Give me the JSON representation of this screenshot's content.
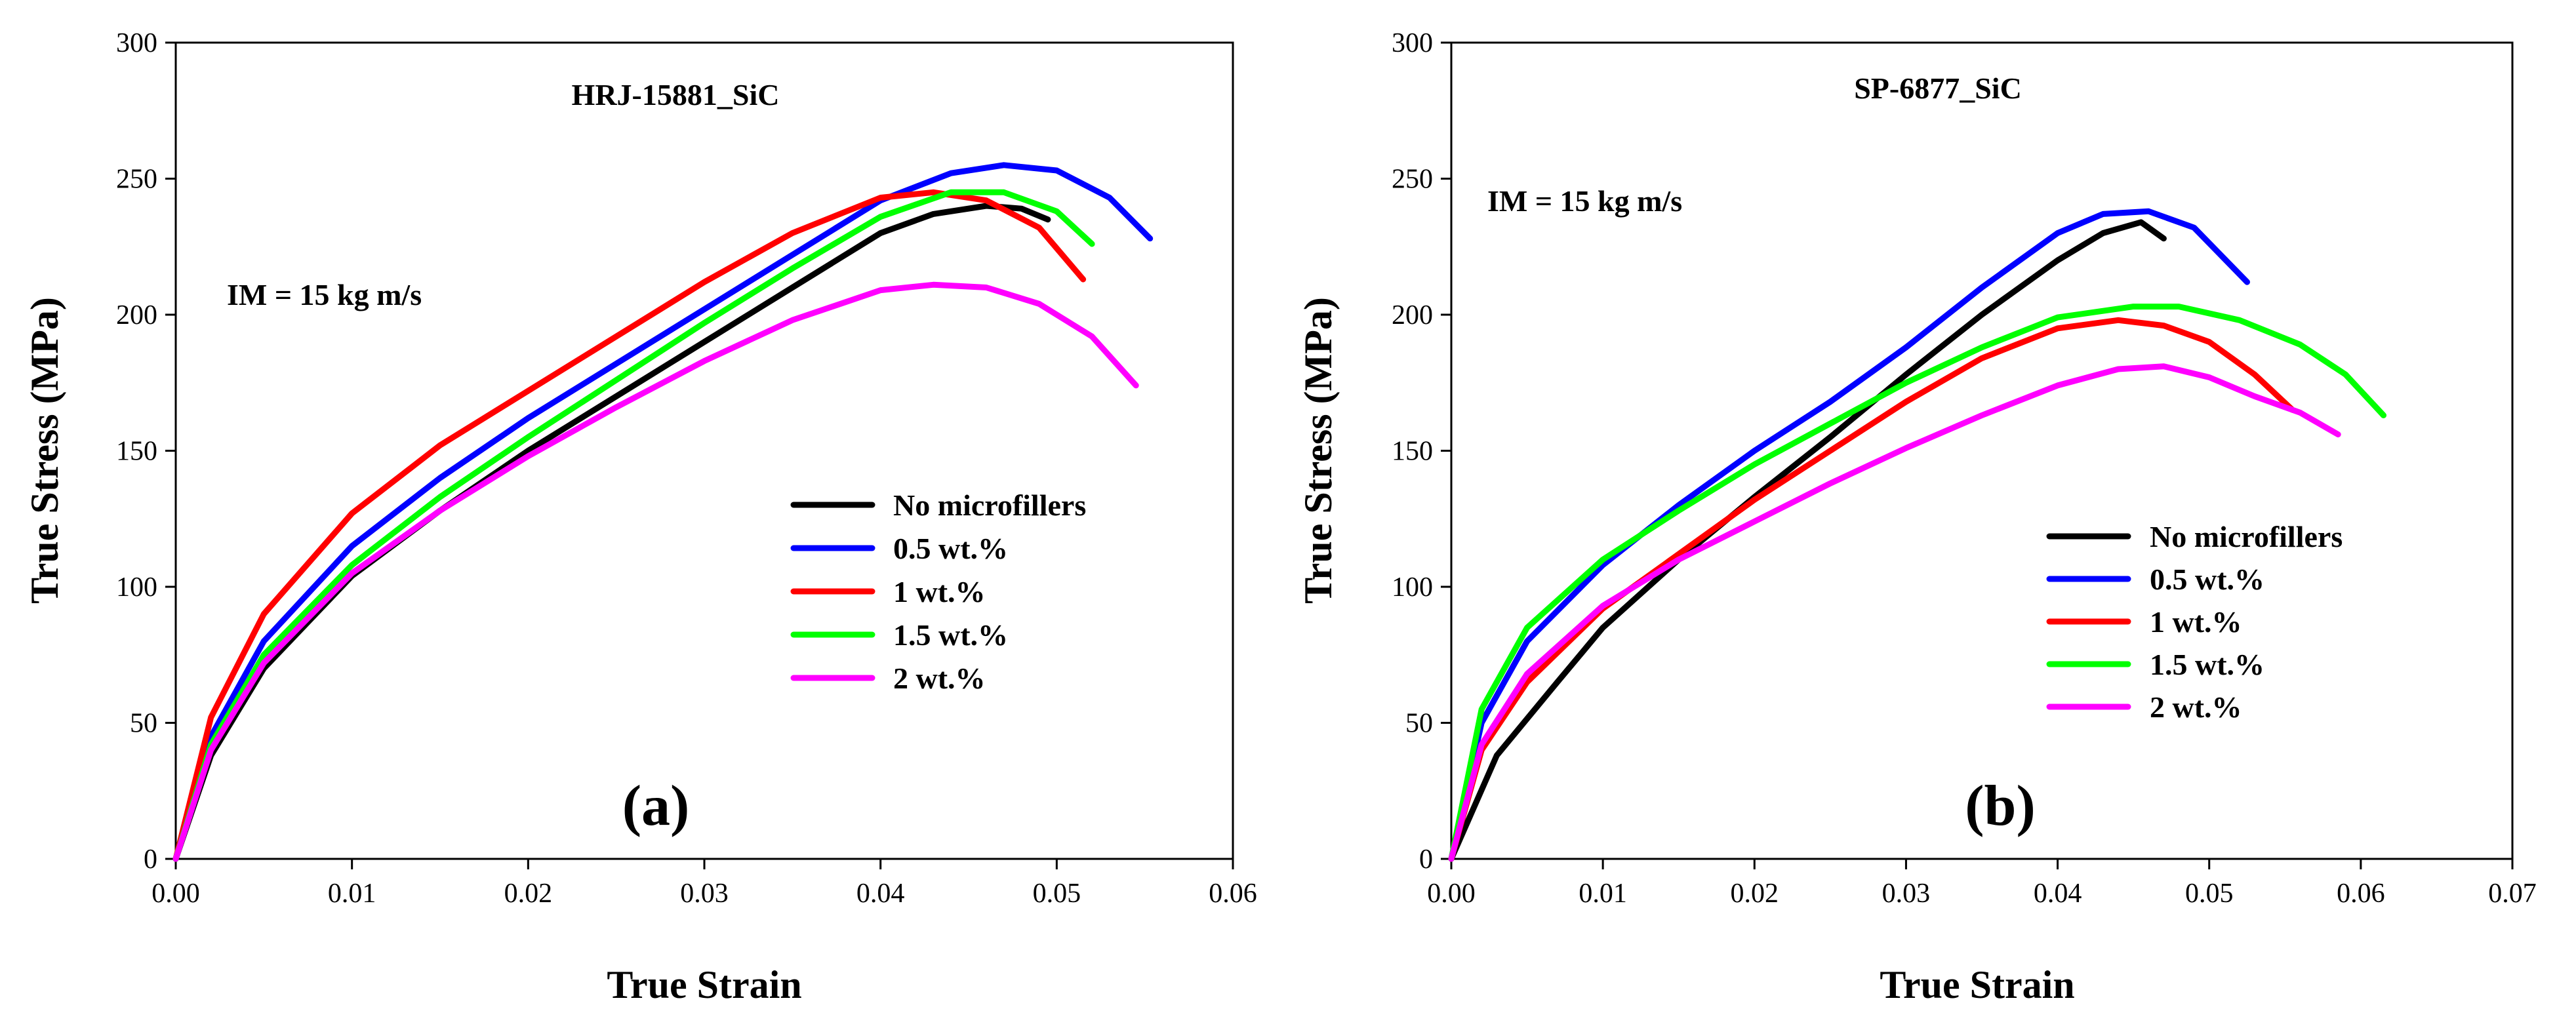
{
  "chart_data": [
    {
      "type": "line",
      "title": "HRJ-15881_SiC",
      "annotation": "IM = 15 kg m/s",
      "panel_label": "(a)",
      "xlabel": "True Strain",
      "ylabel": "True Stress (MPa)",
      "xlim": [
        0,
        0.06
      ],
      "ylim": [
        0,
        300
      ],
      "xticks": [
        0,
        0.01,
        0.02,
        0.03,
        0.04,
        0.05,
        0.06
      ],
      "xtick_labels": [
        "0.00",
        "0.01",
        "0.02",
        "0.03",
        "0.04",
        "0.05",
        "0.06"
      ],
      "yticks": [
        0,
        50,
        100,
        150,
        200,
        250,
        300
      ],
      "ytick_labels": [
        "0",
        "50",
        "100",
        "150",
        "200",
        "250",
        "300"
      ],
      "legend_position": "center-right",
      "series": [
        {
          "name": "No microfillers",
          "color": "#000000",
          "x": [
            0,
            0.002,
            0.005,
            0.01,
            0.015,
            0.02,
            0.025,
            0.03,
            0.035,
            0.04,
            0.043,
            0.046,
            0.048,
            0.0495
          ],
          "y": [
            0,
            38,
            70,
            104,
            128,
            150,
            170,
            190,
            210,
            230,
            237,
            240,
            239,
            235
          ]
        },
        {
          "name": "0.5 wt.%",
          "color": "#0000ff",
          "x": [
            0,
            0.002,
            0.005,
            0.01,
            0.015,
            0.02,
            0.025,
            0.03,
            0.035,
            0.04,
            0.044,
            0.047,
            0.05,
            0.053,
            0.0553
          ],
          "y": [
            0,
            45,
            80,
            115,
            140,
            162,
            182,
            202,
            222,
            242,
            252,
            255,
            253,
            243,
            228
          ]
        },
        {
          "name": "1 wt.%",
          "color": "#ff0000",
          "x": [
            0,
            0.002,
            0.005,
            0.01,
            0.015,
            0.02,
            0.025,
            0.03,
            0.035,
            0.04,
            0.043,
            0.046,
            0.049,
            0.0515
          ],
          "y": [
            0,
            52,
            90,
            127,
            152,
            172,
            192,
            212,
            230,
            243,
            245,
            242,
            232,
            213
          ]
        },
        {
          "name": "1.5 wt.%",
          "color": "#00ff00",
          "x": [
            0,
            0.002,
            0.005,
            0.01,
            0.015,
            0.02,
            0.025,
            0.03,
            0.035,
            0.04,
            0.044,
            0.047,
            0.05,
            0.052
          ],
          "y": [
            0,
            42,
            75,
            108,
            133,
            155,
            176,
            197,
            217,
            236,
            245,
            245,
            238,
            226
          ]
        },
        {
          "name": "2 wt.%",
          "color": "#ff00ff",
          "x": [
            0,
            0.002,
            0.005,
            0.01,
            0.015,
            0.02,
            0.025,
            0.03,
            0.035,
            0.04,
            0.043,
            0.046,
            0.049,
            0.052,
            0.0545
          ],
          "y": [
            0,
            40,
            72,
            105,
            128,
            148,
            166,
            183,
            198,
            209,
            211,
            210,
            204,
            192,
            174
          ]
        }
      ]
    },
    {
      "type": "line",
      "title": "SP-6877_SiC",
      "annotation": "IM = 15 kg m/s",
      "panel_label": "(b)",
      "xlabel": "True Strain",
      "ylabel": "True Stress (MPa)",
      "xlim": [
        0,
        0.07
      ],
      "ylim": [
        0,
        300
      ],
      "xticks": [
        0,
        0.01,
        0.02,
        0.03,
        0.04,
        0.05,
        0.06,
        0.07
      ],
      "xtick_labels": [
        "0.00",
        "0.01",
        "0.02",
        "0.03",
        "0.04",
        "0.05",
        "0.06",
        "0.07"
      ],
      "yticks": [
        0,
        50,
        100,
        150,
        200,
        250,
        300
      ],
      "ytick_labels": [
        "0",
        "50",
        "100",
        "150",
        "200",
        "250",
        "300"
      ],
      "legend_position": "lower-right",
      "series": [
        {
          "name": "No microfillers",
          "color": "#000000",
          "x": [
            0,
            0.003,
            0.007,
            0.01,
            0.015,
            0.02,
            0.025,
            0.03,
            0.035,
            0.04,
            0.043,
            0.0455,
            0.047
          ],
          "y": [
            0,
            38,
            65,
            85,
            110,
            133,
            155,
            178,
            200,
            220,
            230,
            234,
            228
          ]
        },
        {
          "name": "0.5 wt.%",
          "color": "#0000ff",
          "x": [
            0,
            0.002,
            0.005,
            0.01,
            0.015,
            0.02,
            0.025,
            0.03,
            0.035,
            0.04,
            0.043,
            0.046,
            0.049,
            0.0525
          ],
          "y": [
            0,
            50,
            80,
            108,
            130,
            150,
            168,
            188,
            210,
            230,
            237,
            238,
            232,
            212
          ]
        },
        {
          "name": "1 wt.%",
          "color": "#ff0000",
          "x": [
            0,
            0.002,
            0.005,
            0.01,
            0.015,
            0.02,
            0.025,
            0.03,
            0.035,
            0.04,
            0.044,
            0.047,
            0.05,
            0.053,
            0.0555
          ],
          "y": [
            0,
            40,
            65,
            92,
            112,
            132,
            150,
            168,
            184,
            195,
            198,
            196,
            190,
            178,
            165
          ]
        },
        {
          "name": "1.5 wt.%",
          "color": "#00ff00",
          "x": [
            0,
            0.002,
            0.005,
            0.01,
            0.015,
            0.02,
            0.025,
            0.03,
            0.035,
            0.04,
            0.045,
            0.048,
            0.052,
            0.056,
            0.059,
            0.0615
          ],
          "y": [
            0,
            55,
            85,
            110,
            128,
            145,
            160,
            175,
            188,
            199,
            203,
            203,
            198,
            189,
            178,
            163
          ]
        },
        {
          "name": "2 wt.%",
          "color": "#ff00ff",
          "x": [
            0,
            0.002,
            0.005,
            0.01,
            0.015,
            0.02,
            0.025,
            0.03,
            0.035,
            0.04,
            0.044,
            0.047,
            0.05,
            0.053,
            0.056,
            0.0585
          ],
          "y": [
            0,
            42,
            68,
            93,
            110,
            124,
            138,
            151,
            163,
            174,
            180,
            181,
            177,
            170,
            164,
            156
          ]
        }
      ]
    }
  ]
}
